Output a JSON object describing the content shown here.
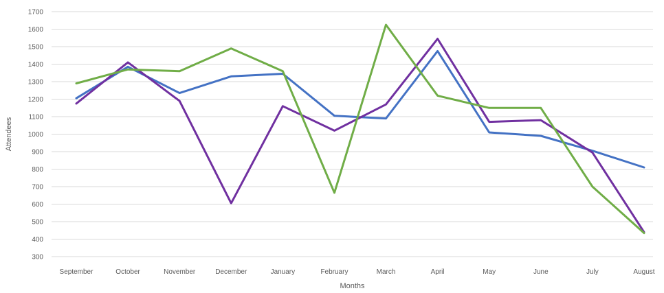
{
  "chart_data": {
    "type": "line",
    "title": "",
    "xlabel": "Months",
    "ylabel": "Attendees",
    "ylim": [
      300,
      1700
    ],
    "ytick_step": 100,
    "grid": true,
    "legend": "none",
    "categories": [
      "September",
      "October",
      "November",
      "December",
      "January",
      "February",
      "March",
      "April",
      "May",
      "June",
      "July",
      "August"
    ],
    "series": [
      {
        "color": "#4472c4",
        "values": [
          1205,
          1385,
          1235,
          1330,
          1345,
          1105,
          1090,
          1475,
          1010,
          990,
          905,
          810
        ]
      },
      {
        "color": "#7030a0",
        "values": [
          1175,
          1410,
          1190,
          605,
          1160,
          1020,
          1170,
          1545,
          1070,
          1080,
          895,
          440
        ]
      },
      {
        "color": "#70ad47",
        "values": [
          1290,
          1370,
          1360,
          1490,
          1360,
          665,
          1625,
          1220,
          1150,
          1150,
          700,
          435
        ]
      }
    ]
  }
}
